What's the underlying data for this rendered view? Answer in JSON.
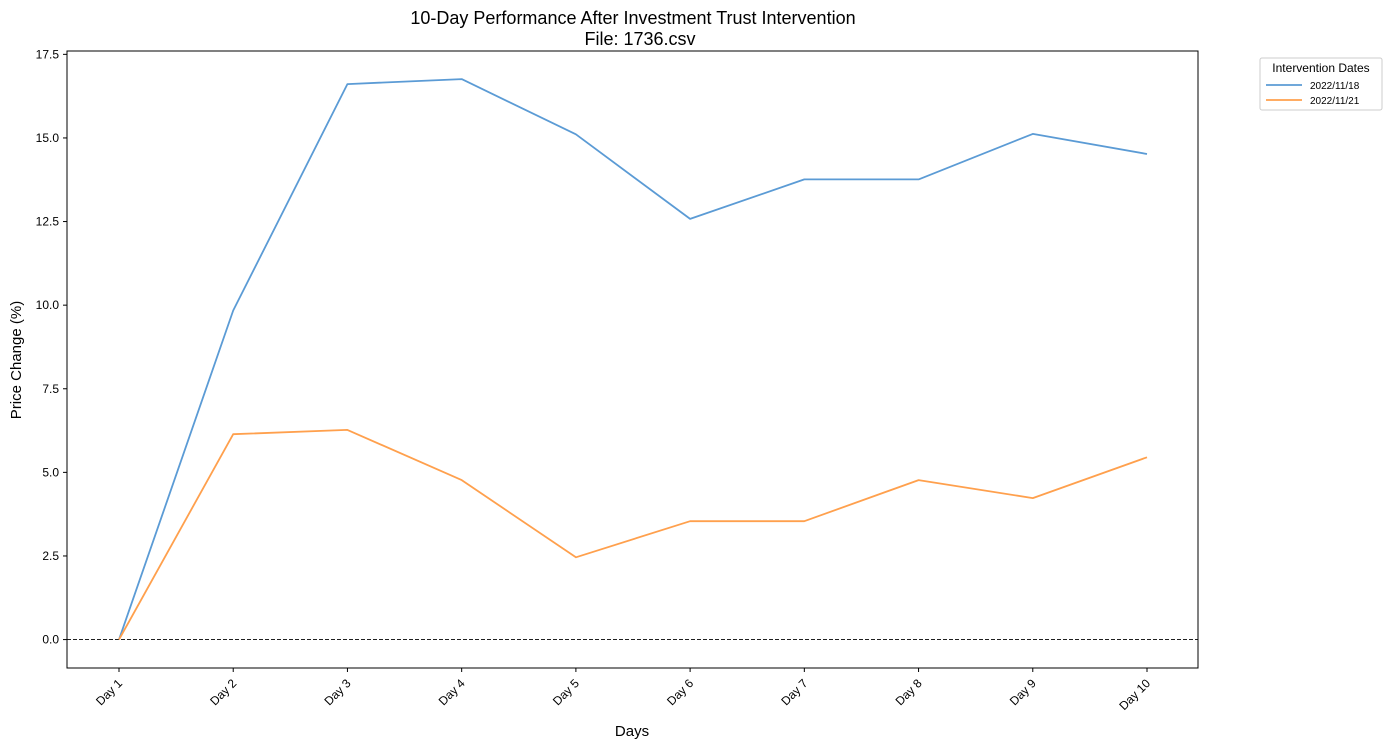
{
  "chart_data": {
    "type": "line",
    "title": "10-Day Performance After Investment Trust Intervention",
    "subtitle": "File: 1736.csv",
    "xlabel": "Days",
    "ylabel": "Price Change (%)",
    "categories": [
      "Day 1",
      "Day 2",
      "Day 3",
      "Day 4",
      "Day 5",
      "Day 6",
      "Day 7",
      "Day 8",
      "Day 9",
      "Day 10"
    ],
    "yticks": [
      "0.0",
      "2.5",
      "5.0",
      "7.5",
      "10.0",
      "12.5",
      "15.0",
      "17.5"
    ],
    "ylim": [
      -0.85,
      17.6
    ],
    "grid": false,
    "reference_line": 0,
    "legend": {
      "title": "Intervention Dates",
      "placement": "outside-top-right"
    },
    "series": [
      {
        "name": "2022/11/18",
        "color": "#5b9bd5",
        "values": [
          0.0,
          9.84,
          16.61,
          16.76,
          15.11,
          12.58,
          13.76,
          13.76,
          15.12,
          14.52
        ]
      },
      {
        "name": "2022/11/21",
        "color": "#ffa04d",
        "values": [
          0.0,
          6.14,
          6.27,
          4.77,
          2.46,
          3.54,
          3.54,
          4.77,
          4.23,
          5.45
        ]
      }
    ]
  }
}
